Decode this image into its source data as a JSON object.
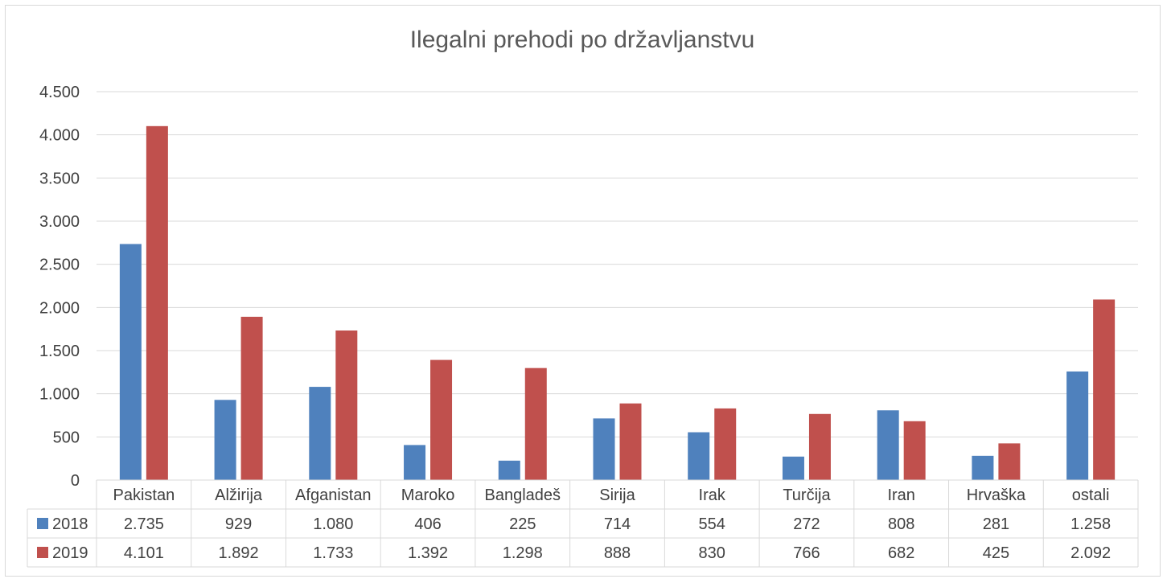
{
  "chart_data": {
    "type": "bar",
    "title": "Ilegalni prehodi po državljanstvu",
    "xlabel": "",
    "ylabel": "",
    "categories": [
      "Pakistan",
      "Alžirija",
      "Afganistan",
      "Maroko",
      "Bangladeš",
      "Sirija",
      "Irak",
      "Turčija",
      "Iran",
      "Hrvaška",
      "ostali"
    ],
    "series": [
      {
        "name": "2018",
        "color": "#4f81bd",
        "values": [
          2735,
          929,
          1080,
          406,
          225,
          714,
          554,
          272,
          808,
          281,
          1258
        ],
        "labels": [
          "2.735",
          "929",
          "1.080",
          "406",
          "225",
          "714",
          "554",
          "272",
          "808",
          "281",
          "1.258"
        ]
      },
      {
        "name": "2019",
        "color": "#c0504d",
        "values": [
          4101,
          1892,
          1733,
          1392,
          1298,
          888,
          830,
          766,
          682,
          425,
          2092
        ],
        "labels": [
          "4.101",
          "1.892",
          "1.733",
          "1.392",
          "1.298",
          "888",
          "830",
          "766",
          "682",
          "425",
          "2.092"
        ]
      }
    ],
    "ylim": [
      0,
      4500
    ],
    "yticks": [
      0,
      500,
      1000,
      1500,
      2000,
      2500,
      3000,
      3500,
      4000,
      4500
    ],
    "ytick_labels": [
      "0",
      "500",
      "1.000",
      "1.500",
      "2.000",
      "2.500",
      "3.000",
      "3.500",
      "4.000",
      "4.500"
    ],
    "grid": true,
    "legend": "data-table"
  }
}
